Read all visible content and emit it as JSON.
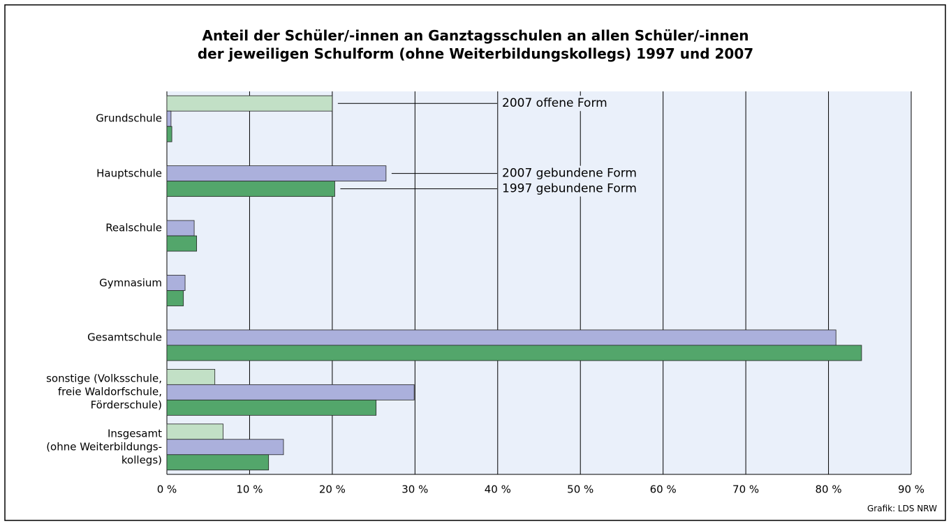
{
  "chart_data": {
    "type": "bar",
    "orientation": "horizontal",
    "title": "Anteil der Schüler/-innen an Ganztagsschulen an allen Schüler/-innen\nder jeweiligen Schulform (ohne Weiterbildungskollegs) 1997 und 2007",
    "categories": [
      "Grundschule",
      "Hauptschule",
      "Realschule",
      "Gymnasium",
      "Gesamtschule",
      "sonstige (Volksschule,\nfreie Waldorfschule,\nFörderschule)",
      "Insgesamt\n(ohne Weiterbildungs-\nkollegs)"
    ],
    "series": [
      {
        "name": "2007 offene Form",
        "color": "#c2e0c6",
        "values": [
          20.0,
          null,
          null,
          null,
          null,
          5.8,
          6.8
        ]
      },
      {
        "name": "2007 gebundene Form",
        "color": "#abb0dc",
        "values": [
          0.5,
          26.5,
          3.3,
          2.2,
          80.9,
          29.9,
          14.1
        ]
      },
      {
        "name": "1997 gebundene Form",
        "color": "#53a66b",
        "values": [
          0.6,
          20.3,
          3.6,
          2.0,
          84.0,
          25.3,
          12.3
        ]
      }
    ],
    "xlim": [
      0,
      90
    ],
    "xticks": [
      {
        "value": 0,
        "label": "0 %"
      },
      {
        "value": 10,
        "label": "10 %"
      },
      {
        "value": 20,
        "label": "20 %"
      },
      {
        "value": 30,
        "label": "30 %"
      },
      {
        "value": 40,
        "label": "40 %"
      },
      {
        "value": 50,
        "label": "50 %"
      },
      {
        "value": 60,
        "label": "60 %"
      },
      {
        "value": 70,
        "label": "70 %"
      },
      {
        "value": 80,
        "label": "80 %"
      },
      {
        "value": 90,
        "label": "90 %"
      }
    ],
    "grid": true,
    "source": "Grafik: LDS NRW"
  }
}
